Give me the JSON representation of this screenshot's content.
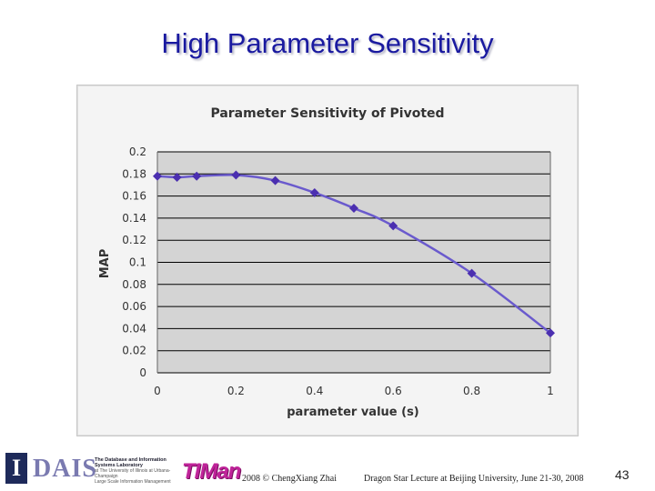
{
  "slide": {
    "title": "High Parameter Sensitivity",
    "page_number": "43"
  },
  "footer": {
    "logo_i": "I",
    "logo_dais": "DAIS",
    "logo_dais_line1": "The Database and Information Systems Laboratory",
    "logo_dais_line2": "at The University of Illinois at Urbana-Champaign",
    "logo_dais_line3": "Large Scale Information Management",
    "logo_timan": "TIMan",
    "copyright": "2008 © ChengXiang Zhai",
    "lecture": "Dragon Star Lecture at Beijing University, June 21-30, 2008"
  },
  "colors": {
    "title": "#1a1aa0",
    "series_line": "#6a5acd",
    "series_marker": "#4b2fb0",
    "plot_bg": "#d4d4d4",
    "grid": "#000000"
  },
  "chart_data": {
    "type": "line",
    "title": "Parameter Sensitivity of Pivoted",
    "xlabel": "parameter value (s)",
    "ylabel": "MAP",
    "xlim": [
      0,
      1
    ],
    "ylim": [
      0,
      0.2
    ],
    "x_ticks": [
      "0",
      "0.2",
      "0.4",
      "0.6",
      "0.8",
      "1"
    ],
    "y_ticks": [
      "0",
      "0.02",
      "0.04",
      "0.06",
      "0.08",
      "0.1",
      "0.12",
      "0.14",
      "0.16",
      "0.18",
      "0.2"
    ],
    "grid": true,
    "series": [
      {
        "name": "Pivoted",
        "x": [
          0.0,
          0.05,
          0.1,
          0.2,
          0.3,
          0.4,
          0.5,
          0.6,
          0.8,
          1.0
        ],
        "values": [
          0.178,
          0.177,
          0.178,
          0.179,
          0.174,
          0.163,
          0.149,
          0.133,
          0.09,
          0.036
        ]
      }
    ]
  }
}
